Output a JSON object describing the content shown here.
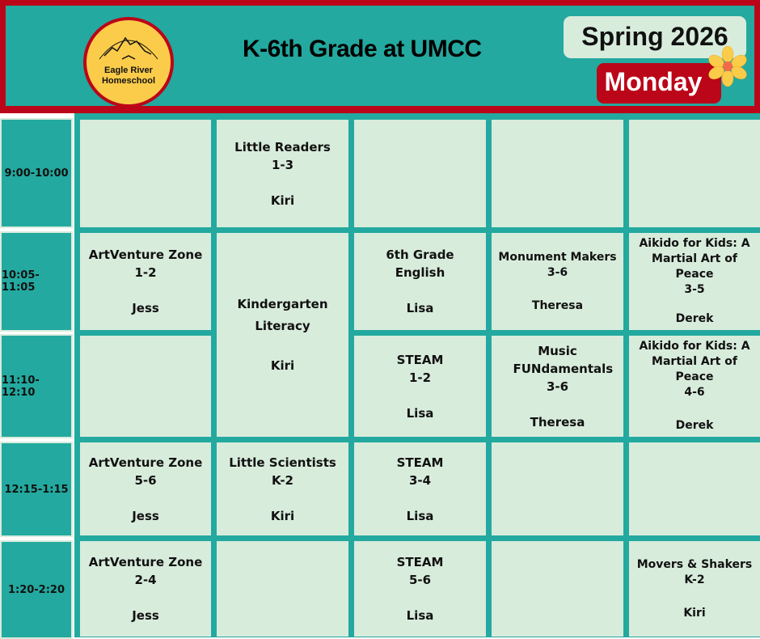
{
  "header": {
    "logo_text": [
      "Eagle River",
      "Homeschool"
    ],
    "title": "K-6th Grade at UMCC",
    "term": "Spring 2026",
    "day": "Monday"
  },
  "colors": {
    "teal": "#23a99f",
    "red": "#bb0518",
    "cell": "#d8ecdc",
    "yellow": "#fbcc4a"
  },
  "times": [
    "9:00-10:00",
    "10:05-11:05",
    "11:10-12:10",
    "12:15-1:15",
    "1:20-2:20"
  ],
  "classes": [
    {
      "title": "Little Readers",
      "grades": "1-3",
      "teacher": "Kiri"
    },
    {
      "title": "ArtVenture Zone",
      "grades": "1-2",
      "teacher": "Jess"
    },
    {
      "title": "Kindergarten Literacy",
      "grades": "",
      "teacher": "Kiri"
    },
    {
      "title": "6th Grade English",
      "grades": "",
      "teacher": "Lisa"
    },
    {
      "title": "Monument Makers",
      "grades": "3-6",
      "teacher": "Theresa"
    },
    {
      "title": "Aikido for Kids: A Martial Art of Peace",
      "grades": "3-5",
      "teacher": "Derek"
    },
    {
      "title": "STEAM",
      "grades": "1-2",
      "teacher": "Lisa"
    },
    {
      "title": "Music FUNdamentals",
      "grades": "3-6",
      "teacher": "Theresa"
    },
    {
      "title": "Aikido for Kids: A Martial Art of Peace",
      "grades": "4-6",
      "teacher": "Derek"
    },
    {
      "title": "ArtVenture Zone",
      "grades": "5-6",
      "teacher": "Jess"
    },
    {
      "title": "Little Scientists",
      "grades": "K-2",
      "teacher": "Kiri"
    },
    {
      "title": "STEAM",
      "grades": "3-4",
      "teacher": "Lisa"
    },
    {
      "title": "ArtVenture Zone",
      "grades": "2-4",
      "teacher": "Jess"
    },
    {
      "title": "STEAM",
      "grades": "5-6",
      "teacher": "Lisa"
    },
    {
      "title": "Movers & Shakers",
      "grades": "K-2",
      "teacher": "Kiri"
    }
  ]
}
